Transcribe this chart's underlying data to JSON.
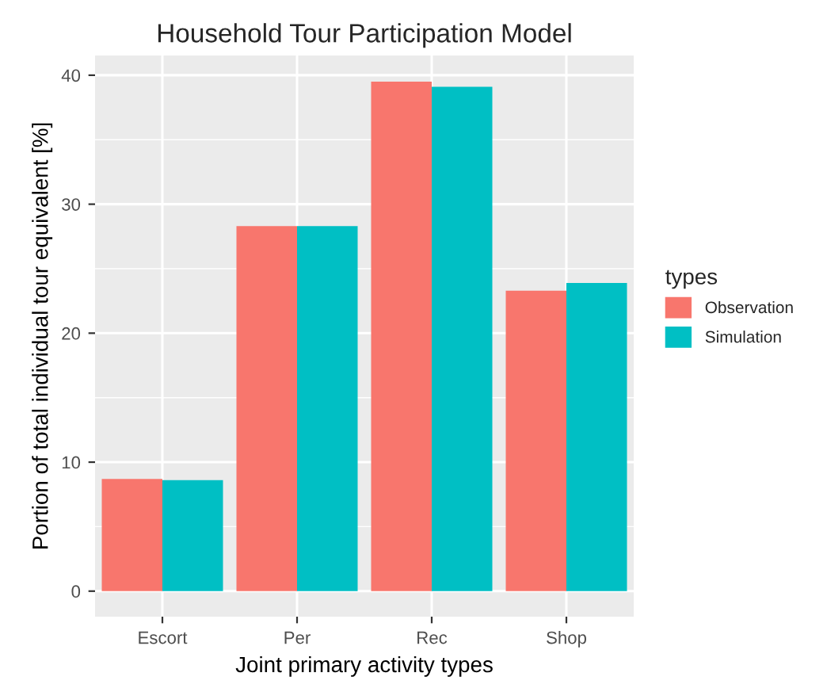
{
  "chart_data": {
    "type": "bar",
    "title": "Household Tour Participation Model",
    "xlabel": "Joint primary activity types",
    "ylabel": "Portion of total individual tour equivalent [%]",
    "legend_title": "types",
    "legend": "right",
    "categories": [
      "Escort",
      "Per",
      "Rec",
      "Shop"
    ],
    "series": [
      {
        "name": "Observation",
        "color": "#f8766d",
        "values": [
          8.7,
          28.3,
          39.5,
          23.3
        ]
      },
      {
        "name": "Simulation",
        "color": "#00bfc4",
        "values": [
          8.6,
          28.3,
          39.1,
          23.9
        ]
      }
    ],
    "ylim": [
      -1.98,
      41.53
    ],
    "yticks": [
      0,
      10,
      20,
      30,
      40
    ],
    "grid": true
  }
}
